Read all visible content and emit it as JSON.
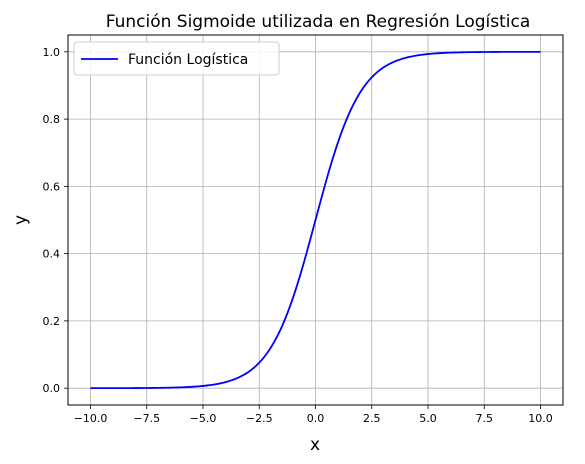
{
  "chart_data": {
    "type": "line",
    "title": "Función Sigmoide utilizada en Regresión Logística",
    "xlabel": "x",
    "ylabel": "y",
    "xlim": [
      -11,
      11
    ],
    "ylim": [
      -0.05,
      1.05
    ],
    "xticks": [
      -10.0,
      -7.5,
      -5.0,
      -2.5,
      0.0,
      2.5,
      5.0,
      7.5,
      10.0
    ],
    "xtick_labels": [
      "−10.0",
      "−7.5",
      "−5.0",
      "−2.5",
      "0.0",
      "2.5",
      "5.0",
      "7.5",
      "10.0"
    ],
    "yticks": [
      0.0,
      0.2,
      0.4,
      0.6,
      0.8,
      1.0
    ],
    "ytick_labels": [
      "0.0",
      "0.2",
      "0.4",
      "0.6",
      "0.8",
      "1.0"
    ],
    "grid": true,
    "legend_position": "top-left",
    "series": [
      {
        "name": "Función Logística",
        "color": "#0000ff",
        "function": "1/(1+exp(-x))",
        "x": [
          -10,
          -9,
          -8,
          -7,
          -6,
          -5,
          -4,
          -3,
          -2.5,
          -2,
          -1.5,
          -1,
          -0.5,
          0,
          0.5,
          1,
          1.5,
          2,
          2.5,
          3,
          4,
          5,
          6,
          7,
          8,
          9,
          10
        ],
        "y": [
          4.54e-05,
          0.000123,
          0.000335,
          0.000911,
          0.00247,
          0.00669,
          0.018,
          0.0474,
          0.0759,
          0.1192,
          0.1824,
          0.2689,
          0.3775,
          0.5,
          0.6225,
          0.7311,
          0.8176,
          0.8808,
          0.9241,
          0.9526,
          0.982,
          0.9933,
          0.9975,
          0.9991,
          0.9997,
          0.9999,
          1.0
        ]
      }
    ]
  }
}
